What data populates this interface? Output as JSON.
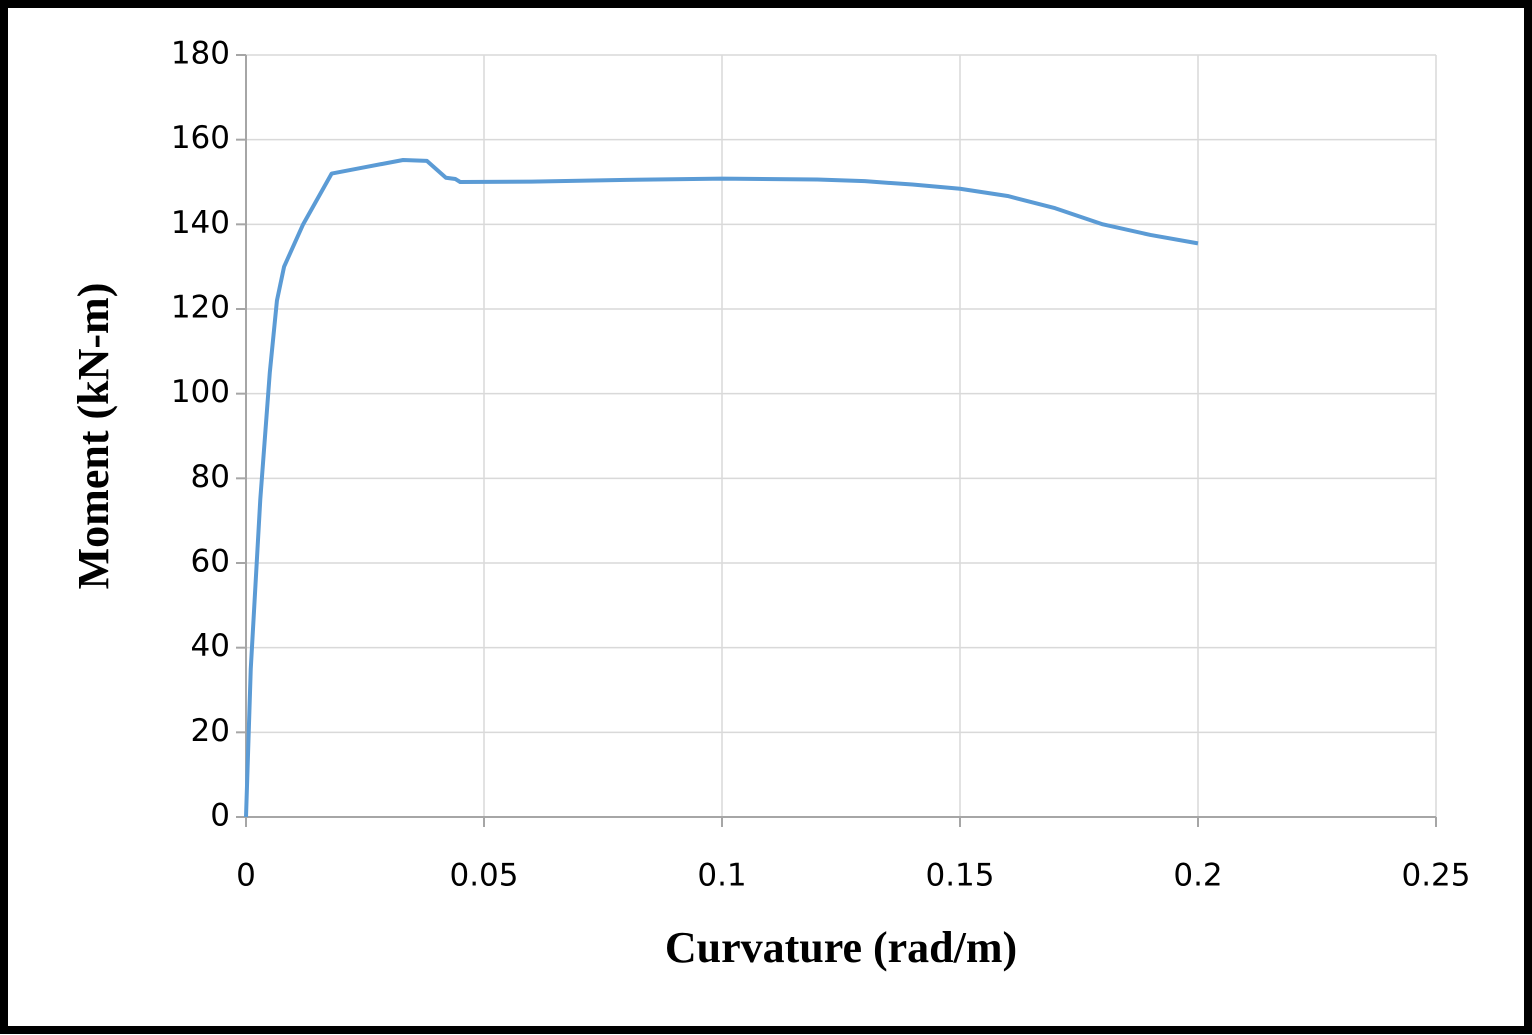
{
  "chart_data": {
    "type": "line",
    "x_label": "Curvature (rad/m)",
    "y_label": "Moment (kN-m)",
    "series": [
      {
        "name": null,
        "color": "#5b9bd5",
        "x": [
          0,
          0.001,
          0.003,
          0.005,
          0.0065,
          0.008,
          0.012,
          0.018,
          0.025,
          0.033,
          0.038,
          0.042,
          0.044,
          0.045,
          0.06,
          0.08,
          0.1,
          0.12,
          0.13,
          0.14,
          0.15,
          0.16,
          0.17,
          0.18,
          0.19,
          0.2
        ],
        "values": [
          0,
          35,
          75,
          105,
          122,
          130,
          140,
          152,
          153.5,
          155.2,
          155,
          151,
          150.7,
          150,
          150.1,
          150.5,
          150.8,
          150.6,
          150.2,
          149.4,
          148.4,
          146.7,
          143.8,
          140,
          137.5,
          135.5
        ]
      }
    ],
    "xlim": [
      0,
      0.25
    ],
    "xticks": [
      0,
      0.05,
      0.1,
      0.15,
      0.2,
      0.25
    ],
    "ylim": [
      0,
      180
    ],
    "yticks": [
      0,
      20,
      40,
      60,
      80,
      100,
      120,
      140,
      160,
      180
    ],
    "grid": true
  }
}
